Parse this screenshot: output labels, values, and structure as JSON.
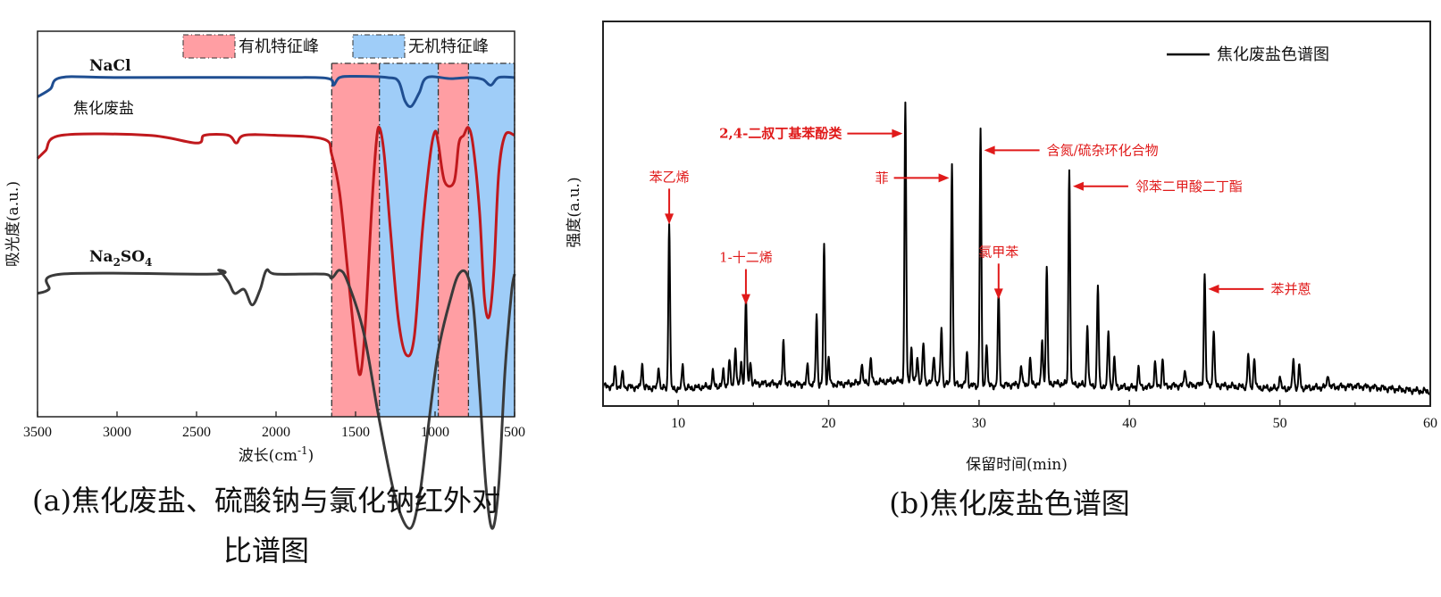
{
  "chart_data": [
    {
      "type": "line",
      "chart": "ir",
      "xlabel": "波长(cm-1)",
      "xlabel_main": "波长(cm",
      "xlabel_sup": "-1",
      "xlabel_end": ")",
      "ylabel": "吸光度(a.u.)",
      "xlim": [
        3500,
        500
      ],
      "x_reversed": true,
      "xticks": [
        3500,
        3000,
        2500,
        2000,
        1500,
        1000,
        500
      ],
      "legend": [
        {
          "label": "有机特征峰",
          "color": "#ff9ea3"
        },
        {
          "label": "无机特征峰",
          "color": "#9fcdf8"
        }
      ],
      "regions": [
        {
          "type": "有机特征峰",
          "from": 1650,
          "to": 1350
        },
        {
          "type": "无机特征峰",
          "from": 1350,
          "to": 980
        },
        {
          "type": "有机特征峰",
          "from": 980,
          "to": 790
        },
        {
          "type": "无机特征峰",
          "from": 790,
          "to": 500
        }
      ],
      "series": [
        {
          "name": "NaCl",
          "color": "#1f4e91",
          "bold": true,
          "offset": 0.88,
          "points": [
            [
              3500,
              -0.05
            ],
            [
              3420,
              -0.03
            ],
            [
              3350,
              0.0
            ],
            [
              3000,
              0.0
            ],
            [
              2000,
              0.0
            ],
            [
              1680,
              -0.002
            ],
            [
              1640,
              -0.02
            ],
            [
              1600,
              0.0
            ],
            [
              1500,
              0.003
            ],
            [
              1300,
              0.0
            ],
            [
              1230,
              -0.01
            ],
            [
              1190,
              -0.06
            ],
            [
              1150,
              -0.075
            ],
            [
              1100,
              -0.04
            ],
            [
              1050,
              0.0
            ],
            [
              900,
              -0.003
            ],
            [
              780,
              0.0
            ],
            [
              700,
              -0.005
            ],
            [
              650,
              -0.02
            ],
            [
              600,
              0.0
            ],
            [
              500,
              0.0
            ]
          ]
        },
        {
          "name": "焦化废盐",
          "color": "#c0191d",
          "bold": false,
          "offset": 0.73,
          "points": [
            [
              3500,
              -0.06
            ],
            [
              3450,
              -0.04
            ],
            [
              3350,
              0.0
            ],
            [
              2800,
              0.0
            ],
            [
              2500,
              -0.02
            ],
            [
              2450,
              0.0
            ],
            [
              2300,
              0.0
            ],
            [
              2250,
              -0.02
            ],
            [
              2200,
              0.0
            ],
            [
              2000,
              0.0
            ],
            [
              1700,
              -0.01
            ],
            [
              1650,
              -0.05
            ],
            [
              1600,
              -0.15
            ],
            [
              1550,
              -0.35
            ],
            [
              1500,
              -0.55
            ],
            [
              1470,
              -0.62
            ],
            [
              1440,
              -0.5
            ],
            [
              1400,
              -0.2
            ],
            [
              1370,
              -0.02
            ],
            [
              1350,
              0.02
            ],
            [
              1320,
              -0.05
            ],
            [
              1280,
              -0.25
            ],
            [
              1230,
              -0.48
            ],
            [
              1180,
              -0.57
            ],
            [
              1130,
              -0.52
            ],
            [
              1080,
              -0.25
            ],
            [
              1030,
              -0.05
            ],
            [
              1000,
              0.01
            ],
            [
              980,
              -0.02
            ],
            [
              940,
              -0.12
            ],
            [
              880,
              -0.12
            ],
            [
              850,
              -0.02
            ],
            [
              820,
              0.0
            ],
            [
              790,
              0.02
            ],
            [
              760,
              -0.03
            ],
            [
              720,
              -0.2
            ],
            [
              690,
              -0.42
            ],
            [
              660,
              -0.47
            ],
            [
              630,
              -0.35
            ],
            [
              600,
              -0.1
            ],
            [
              560,
              0.0
            ],
            [
              500,
              0.0
            ]
          ]
        },
        {
          "name": "Na2SO4",
          "name_main": "Na",
          "name_sub": "2",
          "name_main2": "SO",
          "name_sub2": "4",
          "color": "#3a3a3a",
          "bold": true,
          "offset": 0.37,
          "points": [
            [
              3500,
              -0.05
            ],
            [
              3430,
              -0.04
            ],
            [
              3350,
              0.0
            ],
            [
              2400,
              0.0
            ],
            [
              2360,
              0.01
            ],
            [
              2300,
              -0.02
            ],
            [
              2260,
              -0.05
            ],
            [
              2200,
              -0.04
            ],
            [
              2150,
              -0.08
            ],
            [
              2100,
              -0.04
            ],
            [
              2060,
              0.01
            ],
            [
              2000,
              0.0
            ],
            [
              1700,
              0.0
            ],
            [
              1650,
              -0.01
            ],
            [
              1600,
              0.01
            ],
            [
              1550,
              -0.02
            ],
            [
              1450,
              -0.15
            ],
            [
              1350,
              -0.38
            ],
            [
              1250,
              -0.58
            ],
            [
              1160,
              -0.66
            ],
            [
              1100,
              -0.58
            ],
            [
              1050,
              -0.42
            ],
            [
              980,
              -0.2
            ],
            [
              900,
              -0.06
            ],
            [
              850,
              0.0
            ],
            [
              800,
              0.0
            ],
            [
              760,
              -0.08
            ],
            [
              720,
              -0.3
            ],
            [
              680,
              -0.55
            ],
            [
              640,
              -0.66
            ],
            [
              600,
              -0.55
            ],
            [
              560,
              -0.25
            ],
            [
              520,
              -0.05
            ],
            [
              500,
              0.0
            ]
          ]
        }
      ],
      "caption_line1": "(a)焦化废盐、硫酸钠与氯化钠红外对",
      "caption_line2": "比谱图"
    },
    {
      "type": "line",
      "chart": "gc",
      "xlabel": "保留时间(min)",
      "ylabel": "强度(a.u.)",
      "xlim": [
        5,
        60
      ],
      "xticks": [
        10,
        20,
        30,
        40,
        50,
        60
      ],
      "ylim": [
        0,
        1
      ],
      "legend": [
        {
          "label": "焦化废盐色谱图",
          "color": "#000000"
        }
      ],
      "baseline": [
        [
          5,
          0.03
        ],
        [
          10,
          0.02
        ],
        [
          15,
          0.04
        ],
        [
          20,
          0.035
        ],
        [
          25,
          0.05
        ],
        [
          30,
          0.03
        ],
        [
          35,
          0.04
        ],
        [
          40,
          0.025
        ],
        [
          45,
          0.035
        ],
        [
          50,
          0.02
        ],
        [
          55,
          0.03
        ],
        [
          60,
          0.01
        ]
      ],
      "peaks": [
        [
          5.8,
          0.07
        ],
        [
          6.3,
          0.05
        ],
        [
          7.6,
          0.09
        ],
        [
          8.7,
          0.08
        ],
        [
          9.4,
          0.6
        ],
        [
          10.3,
          0.09
        ],
        [
          12.3,
          0.05
        ],
        [
          13.0,
          0.05
        ],
        [
          13.4,
          0.09
        ],
        [
          13.8,
          0.14
        ],
        [
          14.2,
          0.08
        ],
        [
          14.5,
          0.31
        ],
        [
          14.8,
          0.08
        ],
        [
          17.0,
          0.16
        ],
        [
          18.6,
          0.07
        ],
        [
          19.2,
          0.25
        ],
        [
          19.7,
          0.5
        ],
        [
          20.0,
          0.1
        ],
        [
          22.2,
          0.07
        ],
        [
          22.8,
          0.09
        ],
        [
          25.1,
          1.0
        ],
        [
          25.5,
          0.12
        ],
        [
          25.9,
          0.09
        ],
        [
          26.3,
          0.14
        ],
        [
          27.0,
          0.1
        ],
        [
          27.5,
          0.2
        ],
        [
          28.2,
          0.8
        ],
        [
          29.2,
          0.12
        ],
        [
          30.1,
          0.92
        ],
        [
          30.5,
          0.16
        ],
        [
          31.3,
          0.33
        ],
        [
          32.8,
          0.07
        ],
        [
          33.4,
          0.09
        ],
        [
          34.2,
          0.16
        ],
        [
          34.5,
          0.42
        ],
        [
          36.0,
          0.78
        ],
        [
          37.2,
          0.22
        ],
        [
          37.9,
          0.36
        ],
        [
          38.6,
          0.2
        ],
        [
          39.0,
          0.1
        ],
        [
          40.6,
          0.07
        ],
        [
          41.7,
          0.09
        ],
        [
          42.2,
          0.1
        ],
        [
          43.7,
          0.06
        ],
        [
          45.0,
          0.4
        ],
        [
          45.6,
          0.2
        ],
        [
          47.9,
          0.12
        ],
        [
          48.3,
          0.11
        ],
        [
          50.0,
          0.05
        ],
        [
          50.9,
          0.11
        ],
        [
          51.3,
          0.08
        ],
        [
          53.2,
          0.05
        ]
      ],
      "annotations": [
        {
          "label": "苯乙烯",
          "x": 9.4,
          "y": 0.6,
          "direction": "down",
          "bold": false
        },
        {
          "label": "1-十二烯",
          "x": 14.5,
          "y": 0.31,
          "direction": "down",
          "bold": false
        },
        {
          "label": "2,4-二叔丁基苯酚类",
          "x": 25.1,
          "y": 0.94,
          "direction": "right",
          "bold": true
        },
        {
          "label": "菲",
          "x": 28.2,
          "y": 0.78,
          "direction": "right",
          "bold": false
        },
        {
          "label": "含氮/硫杂环化合物",
          "x": 30.1,
          "y": 0.88,
          "direction": "left",
          "bold": false
        },
        {
          "label": "邻苯二甲酸二丁酯",
          "x": 36.0,
          "y": 0.75,
          "direction": "left",
          "bold": false
        },
        {
          "label": "氯甲苯",
          "x": 31.3,
          "y": 0.33,
          "direction": "down",
          "bold": false
        },
        {
          "label": "苯并蒽",
          "x": 45.0,
          "y": 0.38,
          "direction": "left",
          "bold": false
        }
      ],
      "caption": "(b)焦化废盐色谱图"
    }
  ]
}
